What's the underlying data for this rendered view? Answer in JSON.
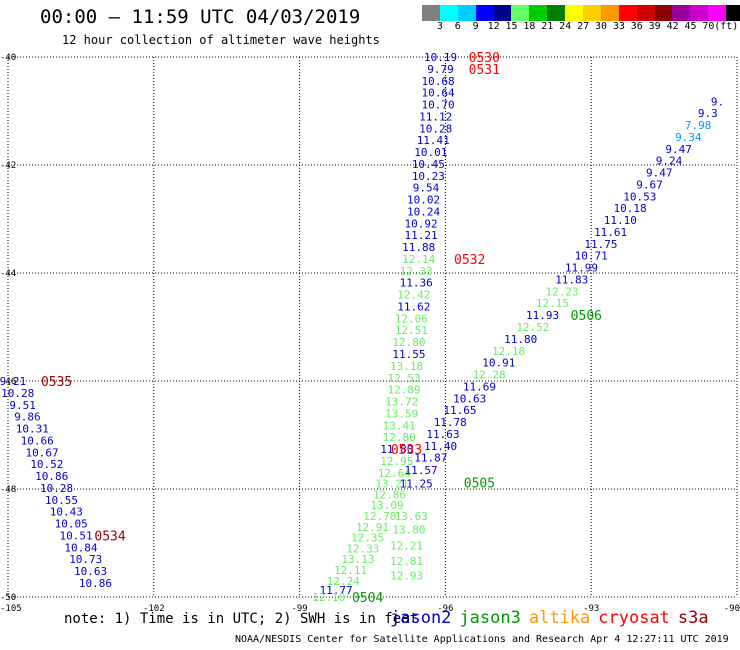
{
  "title": "00:00 – 11:59 UTC 04/03/2019",
  "subtitle": "12 hour collection of altimeter wave heights",
  "scale": {
    "colors": [
      "#808080",
      "#00ffff",
      "#00ccff",
      "#0000ff",
      "#00008b",
      "#66ff66",
      "#00cc00",
      "#008000",
      "#ffff00",
      "#ffcc00",
      "#ff9900",
      "#ff0000",
      "#cc0000",
      "#8b0000",
      "#990099",
      "#cc00cc",
      "#ff00ff",
      "#000000"
    ],
    "labels": [
      "3",
      "6",
      "9",
      "12",
      "15",
      "18",
      "21",
      "24",
      "27",
      "30",
      "33",
      "36",
      "39",
      "42",
      "45",
      "70",
      "(ft)"
    ]
  },
  "axes": {
    "lat_labels": [
      "-40",
      "-42",
      "-44",
      "-46",
      "-48",
      "-50"
    ],
    "lon_labels": [
      "-105",
      "-102",
      "-99",
      "-96",
      "-93",
      "-90"
    ],
    "lon_range": [
      -105,
      -90
    ],
    "lat_range": [
      -40,
      -50
    ]
  },
  "colors": {
    "jason2": "#0000cc",
    "jason3": "#009900",
    "altika": "#ff9900",
    "cryosat": "#ff0000",
    "s3a": "#990000",
    "light_green": "#66ee66",
    "light_blue": "#0099ff"
  },
  "wave_heights": [
    {
      "v": "10.19",
      "lon": -96.1,
      "lat": -40.0,
      "c": "jason2"
    },
    {
      "v": "9.79",
      "lon": -96.1,
      "lat": -40.22,
      "c": "jason2"
    },
    {
      "v": "10.68",
      "lon": -96.15,
      "lat": -40.44,
      "c": "jason2"
    },
    {
      "v": "10.64",
      "lon": -96.15,
      "lat": -40.66,
      "c": "jason2"
    },
    {
      "v": "10.70",
      "lon": -96.15,
      "lat": -40.88,
      "c": "jason2"
    },
    {
      "v": "11.12",
      "lon": -96.2,
      "lat": -41.1,
      "c": "jason2"
    },
    {
      "v": "10.28",
      "lon": -96.2,
      "lat": -41.32,
      "c": "jason2"
    },
    {
      "v": "11.41",
      "lon": -96.25,
      "lat": -41.54,
      "c": "jason2"
    },
    {
      "v": "10.01",
      "lon": -96.3,
      "lat": -41.76,
      "c": "jason2"
    },
    {
      "v": "10.45",
      "lon": -96.35,
      "lat": -41.98,
      "c": "jason2"
    },
    {
      "v": "10.23",
      "lon": -96.35,
      "lat": -42.2,
      "c": "jason2"
    },
    {
      "v": "9.54",
      "lon": -96.4,
      "lat": -42.42,
      "c": "jason2"
    },
    {
      "v": "10.02",
      "lon": -96.45,
      "lat": -42.64,
      "c": "jason2"
    },
    {
      "v": "10.24",
      "lon": -96.45,
      "lat": -42.86,
      "c": "jason2"
    },
    {
      "v": "10.92",
      "lon": -96.5,
      "lat": -43.08,
      "c": "jason2"
    },
    {
      "v": "11.21",
      "lon": -96.5,
      "lat": -43.3,
      "c": "jason2"
    },
    {
      "v": "11.88",
      "lon": -96.55,
      "lat": -43.52,
      "c": "jason2"
    },
    {
      "v": "12.14",
      "lon": -96.55,
      "lat": -43.74,
      "c": "light_green"
    },
    {
      "v": "12.33",
      "lon": -96.6,
      "lat": -43.96,
      "c": "light_green"
    },
    {
      "v": "11.36",
      "lon": -96.6,
      "lat": -44.18,
      "c": "jason2"
    },
    {
      "v": "12.42",
      "lon": -96.65,
      "lat": -44.4,
      "c": "light_green"
    },
    {
      "v": "11.62",
      "lon": -96.65,
      "lat": -44.62,
      "c": "jason2"
    },
    {
      "v": "12.06",
      "lon": -96.7,
      "lat": -44.84,
      "c": "light_green"
    },
    {
      "v": "12.51",
      "lon": -96.7,
      "lat": -45.06,
      "c": "light_green"
    },
    {
      "v": "12.80",
      "lon": -96.75,
      "lat": -45.28,
      "c": "light_green"
    },
    {
      "v": "11.55",
      "lon": -96.75,
      "lat": -45.5,
      "c": "jason2"
    },
    {
      "v": "13.18",
      "lon": -96.8,
      "lat": -45.72,
      "c": "light_green"
    },
    {
      "v": "12.53",
      "lon": -96.85,
      "lat": -45.94,
      "c": "light_green"
    },
    {
      "v": "12.89",
      "lon": -96.85,
      "lat": -46.16,
      "c": "light_green"
    },
    {
      "v": "13.72",
      "lon": -96.9,
      "lat": -46.38,
      "c": "light_green"
    },
    {
      "v": "13.59",
      "lon": -96.9,
      "lat": -46.6,
      "c": "light_green"
    },
    {
      "v": "13.41",
      "lon": -96.95,
      "lat": -46.82,
      "c": "light_green"
    },
    {
      "v": "12.80",
      "lon": -96.95,
      "lat": -47.04,
      "c": "light_green"
    },
    {
      "v": "11.80",
      "lon": -97.0,
      "lat": -47.26,
      "c": "jason2"
    },
    {
      "v": "12.95",
      "lon": -97.0,
      "lat": -47.48,
      "c": "light_green"
    },
    {
      "v": "12.64",
      "lon": -97.05,
      "lat": -47.7,
      "c": "light_green"
    },
    {
      "v": "13.21",
      "lon": -97.1,
      "lat": -47.9,
      "c": "light_green"
    },
    {
      "v": "12.86",
      "lon": -97.15,
      "lat": -48.1,
      "c": "light_green"
    },
    {
      "v": "13.09",
      "lon": -97.2,
      "lat": -48.3,
      "c": "light_green"
    },
    {
      "v": "12.78",
      "lon": -97.35,
      "lat": -48.5,
      "c": "light_green"
    },
    {
      "v": "12.91",
      "lon": -97.5,
      "lat": -48.7,
      "c": "light_green"
    },
    {
      "v": "12.35",
      "lon": -97.6,
      "lat": -48.9,
      "c": "light_green"
    },
    {
      "v": "12.33",
      "lon": -97.7,
      "lat": -49.1,
      "c": "light_green"
    },
    {
      "v": "13.13",
      "lon": -97.8,
      "lat": -49.3,
      "c": "light_green"
    },
    {
      "v": "12.11",
      "lon": -97.95,
      "lat": -49.5,
      "c": "light_green"
    },
    {
      "v": "12.24",
      "lon": -98.1,
      "lat": -49.7,
      "c": "light_green"
    },
    {
      "v": "11.77",
      "lon": -98.25,
      "lat": -49.87,
      "c": "jason2"
    },
    {
      "v": "12.10",
      "lon": -98.4,
      "lat": -50.0,
      "c": "light_green"
    },
    {
      "v": "13.63",
      "lon": -96.7,
      "lat": -48.5,
      "c": "light_green"
    },
    {
      "v": "13.80",
      "lon": -96.75,
      "lat": -48.75,
      "c": "light_green"
    },
    {
      "v": "12.21",
      "lon": -96.8,
      "lat": -49.05,
      "c": "light_green"
    },
    {
      "v": "12.81",
      "lon": -96.8,
      "lat": -49.33,
      "c": "light_green"
    },
    {
      "v": "12.93",
      "lon": -96.8,
      "lat": -49.6,
      "c": "light_green"
    },
    {
      "v": "11.25",
      "lon": -96.6,
      "lat": -47.9,
      "c": "jason2"
    },
    {
      "v": "11.57",
      "lon": -96.5,
      "lat": -47.65,
      "c": "jason2"
    },
    {
      "v": "11.87",
      "lon": -96.3,
      "lat": -47.42,
      "c": "jason2"
    },
    {
      "v": "11.40",
      "lon": -96.1,
      "lat": -47.2,
      "c": "jason2"
    },
    {
      "v": "11.63",
      "lon": -96.05,
      "lat": -46.98,
      "c": "jason2"
    },
    {
      "v": "11.78",
      "lon": -95.9,
      "lat": -46.76,
      "c": "jason2"
    },
    {
      "v": "11.65",
      "lon": -95.7,
      "lat": -46.54,
      "c": "jason2"
    },
    {
      "v": "10.63",
      "lon": -95.5,
      "lat": -46.32,
      "c": "jason2"
    },
    {
      "v": "11.69",
      "lon": -95.3,
      "lat": -46.1,
      "c": "jason2"
    },
    {
      "v": "12.28",
      "lon": -95.1,
      "lat": -45.88,
      "c": "light_green"
    },
    {
      "v": "10.91",
      "lon": -94.9,
      "lat": -45.66,
      "c": "jason2"
    },
    {
      "v": "12.18",
      "lon": -94.7,
      "lat": -45.44,
      "c": "light_green"
    },
    {
      "v": "11.80",
      "lon": -94.45,
      "lat": -45.22,
      "c": "jason2"
    },
    {
      "v": "12.52",
      "lon": -94.2,
      "lat": -45.0,
      "c": "light_green"
    },
    {
      "v": "11.93",
      "lon": -94.0,
      "lat": -44.78,
      "c": "jason2"
    },
    {
      "v": "12.15",
      "lon": -93.8,
      "lat": -44.56,
      "c": "light_green"
    },
    {
      "v": "12.23",
      "lon": -93.6,
      "lat": -44.34,
      "c": "light_green"
    },
    {
      "v": "11.83",
      "lon": -93.4,
      "lat": -44.12,
      "c": "jason2"
    },
    {
      "v": "11.99",
      "lon": -93.2,
      "lat": -43.9,
      "c": "jason2"
    },
    {
      "v": "10.71",
      "lon": -93.0,
      "lat": -43.68,
      "c": "jason2"
    },
    {
      "v": "11.75",
      "lon": -92.8,
      "lat": -43.46,
      "c": "jason2"
    },
    {
      "v": "11.61",
      "lon": -92.6,
      "lat": -43.24,
      "c": "jason2"
    },
    {
      "v": "11.10",
      "lon": -92.4,
      "lat": -43.02,
      "c": "jason2"
    },
    {
      "v": "10.18",
      "lon": -92.2,
      "lat": -42.8,
      "c": "jason2"
    },
    {
      "v": "10.53",
      "lon": -92.0,
      "lat": -42.58,
      "c": "jason2"
    },
    {
      "v": "9.67",
      "lon": -91.8,
      "lat": -42.36,
      "c": "jason2"
    },
    {
      "v": "9.47",
      "lon": -91.6,
      "lat": -42.14,
      "c": "jason2"
    },
    {
      "v": "9.24",
      "lon": -91.4,
      "lat": -41.92,
      "c": "jason2"
    },
    {
      "v": "9.47",
      "lon": -91.2,
      "lat": -41.7,
      "c": "jason2"
    },
    {
      "v": "9.34",
      "lon": -91.0,
      "lat": -41.48,
      "c": "light_blue"
    },
    {
      "v": "7.98",
      "lon": -90.8,
      "lat": -41.26,
      "c": "light_blue"
    },
    {
      "v": "9.3",
      "lon": -90.6,
      "lat": -41.04,
      "c": "jason2"
    },
    {
      "v": "9.",
      "lon": -90.4,
      "lat": -40.82,
      "c": "jason2"
    },
    {
      "v": "9.21",
      "lon": -104.9,
      "lat": -46.0,
      "c": "jason2"
    },
    {
      "v": "10.28",
      "lon": -104.8,
      "lat": -46.22,
      "c": "jason2"
    },
    {
      "v": "9.51",
      "lon": -104.7,
      "lat": -46.44,
      "c": "jason2"
    },
    {
      "v": "9.86",
      "lon": -104.6,
      "lat": -46.66,
      "c": "jason2"
    },
    {
      "v": "10.31",
      "lon": -104.5,
      "lat": -46.88,
      "c": "jason2"
    },
    {
      "v": "10.66",
      "lon": -104.4,
      "lat": -47.1,
      "c": "jason2"
    },
    {
      "v": "10.67",
      "lon": -104.3,
      "lat": -47.32,
      "c": "jason2"
    },
    {
      "v": "10.52",
      "lon": -104.2,
      "lat": -47.54,
      "c": "jason2"
    },
    {
      "v": "10.86",
      "lon": -104.1,
      "lat": -47.76,
      "c": "jason2"
    },
    {
      "v": "10.28",
      "lon": -104.0,
      "lat": -47.98,
      "c": "jason2"
    },
    {
      "v": "10.55",
      "lon": -103.9,
      "lat": -48.2,
      "c": "jason2"
    },
    {
      "v": "10.43",
      "lon": -103.8,
      "lat": -48.42,
      "c": "jason2"
    },
    {
      "v": "10.05",
      "lon": -103.7,
      "lat": -48.64,
      "c": "jason2"
    },
    {
      "v": "10.51",
      "lon": -103.6,
      "lat": -48.86,
      "c": "jason2"
    },
    {
      "v": "10.84",
      "lon": -103.5,
      "lat": -49.08,
      "c": "jason2"
    },
    {
      "v": "10.73",
      "lon": -103.4,
      "lat": -49.3,
      "c": "jason2"
    },
    {
      "v": "10.63",
      "lon": -103.3,
      "lat": -49.52,
      "c": "jason2"
    },
    {
      "v": "10.86",
      "lon": -103.2,
      "lat": -49.74,
      "c": "jason2"
    }
  ],
  "pass_times": [
    {
      "t": "0530",
      "lon": -95.2,
      "lat": -40.0,
      "c": "cryosat"
    },
    {
      "t": "0531",
      "lon": -95.2,
      "lat": -40.22,
      "c": "cryosat"
    },
    {
      "t": "0532",
      "lon": -95.5,
      "lat": -43.74,
      "c": "cryosat"
    },
    {
      "t": "0506",
      "lon": -93.1,
      "lat": -44.78,
      "c": "jason3"
    },
    {
      "t": "0533",
      "lon": -96.8,
      "lat": -47.26,
      "c": "cryosat"
    },
    {
      "t": "0505",
      "lon": -95.3,
      "lat": -47.88,
      "c": "jason3"
    },
    {
      "t": "0504",
      "lon": -97.6,
      "lat": -50.0,
      "c": "jason3"
    },
    {
      "t": "0535",
      "lon": -104.0,
      "lat": -46.0,
      "c": "s3a"
    },
    {
      "t": "0534",
      "lon": -102.9,
      "lat": -48.86,
      "c": "s3a"
    }
  ],
  "footer": {
    "note": "note: 1) Time is in UTC; 2) SWH is in feet",
    "credit": "NOAA/NESDIS Center for Satellite Applications and Research   Apr  4 12:27:11 UTC 2019"
  },
  "legend": [
    {
      "name": "jason2",
      "c": "jason2"
    },
    {
      "name": "jason3",
      "c": "jason3"
    },
    {
      "name": "altika",
      "c": "altika"
    },
    {
      "name": "cryosat",
      "c": "cryosat"
    },
    {
      "name": "s3a",
      "c": "s3a"
    }
  ]
}
